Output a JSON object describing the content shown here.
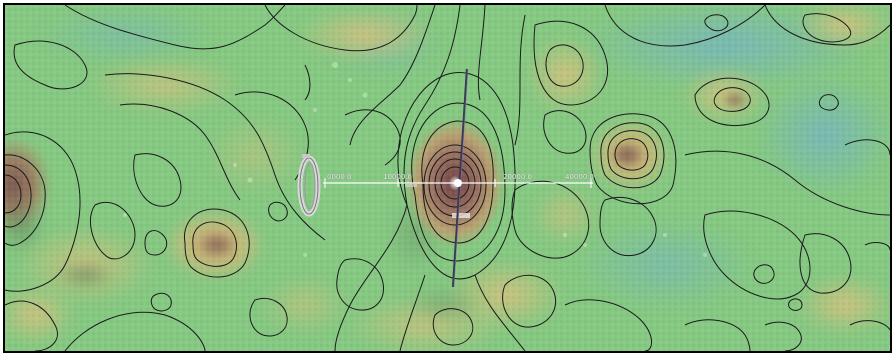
{
  "colors": {
    "frame": "#000000",
    "contour": "#1a1a1a",
    "base_green": "#86c983",
    "teal": "#7dbfae",
    "yellow_tan": "#c2c07c",
    "brown": "#8e6e5c",
    "peak": "#8a5e58",
    "measure_line": "#ffffff",
    "probe_bar": "#3a3a55"
  },
  "measurement": {
    "tick_labels": [
      "0000.0",
      "10000.0",
      "20000.0",
      "40000.0"
    ]
  },
  "icons": {
    "ring": "ring-icon",
    "probe": "vertical-probe-icon"
  }
}
